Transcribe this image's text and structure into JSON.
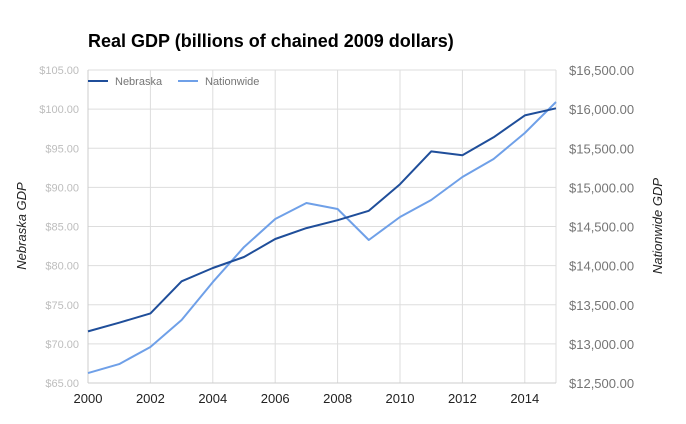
{
  "chart_data": {
    "type": "line",
    "title": "Real GDP (billions of chained 2009 dollars)",
    "xlabel": "",
    "ylabel_left": "Nebraska GDP",
    "ylabel_right": "Nationwide GDP",
    "x": [
      2000,
      2001,
      2002,
      2003,
      2004,
      2005,
      2006,
      2007,
      2008,
      2009,
      2010,
      2011,
      2012,
      2013,
      2014,
      2015
    ],
    "xlim": [
      2000,
      2015
    ],
    "x_ticks": [
      "2000",
      "2002",
      "2004",
      "2006",
      "2008",
      "2010",
      "2012",
      "2014"
    ],
    "x_tick_values": [
      2000,
      2002,
      2004,
      2006,
      2008,
      2010,
      2012,
      2014
    ],
    "ylim_left": [
      65,
      105
    ],
    "ylim_right": [
      12500,
      16500
    ],
    "y_ticks_left": [
      "$65.00",
      "$70.00",
      "$75.00",
      "$80.00",
      "$85.00",
      "$90.00",
      "$95.00",
      "$100.00",
      "$105.00"
    ],
    "y_ticks_right": [
      "$12,500.00",
      "$13,000.00",
      "$13,500.00",
      "$14,000.00",
      "$14,500.00",
      "$15,000.00",
      "$15,500.00",
      "$16,000.00",
      "$16,500.00"
    ],
    "grid": true,
    "legend_position": "top-left",
    "series": [
      {
        "name": "Nebraska",
        "axis": "left",
        "color": "#1f4e9a",
        "values": [
          71.6,
          72.7,
          73.9,
          78.0,
          79.7,
          81.1,
          83.4,
          84.8,
          85.8,
          87.0,
          90.4,
          94.6,
          94.1,
          96.4,
          99.2,
          100.1
        ]
      },
      {
        "name": "Nationwide",
        "axis": "right",
        "color": "#6fa0e8",
        "values": [
          12627,
          12742,
          12960,
          13305,
          13790,
          14237,
          14596,
          14800,
          14724,
          14327,
          14621,
          14839,
          15133,
          15362,
          15695,
          16091
        ]
      }
    ]
  }
}
